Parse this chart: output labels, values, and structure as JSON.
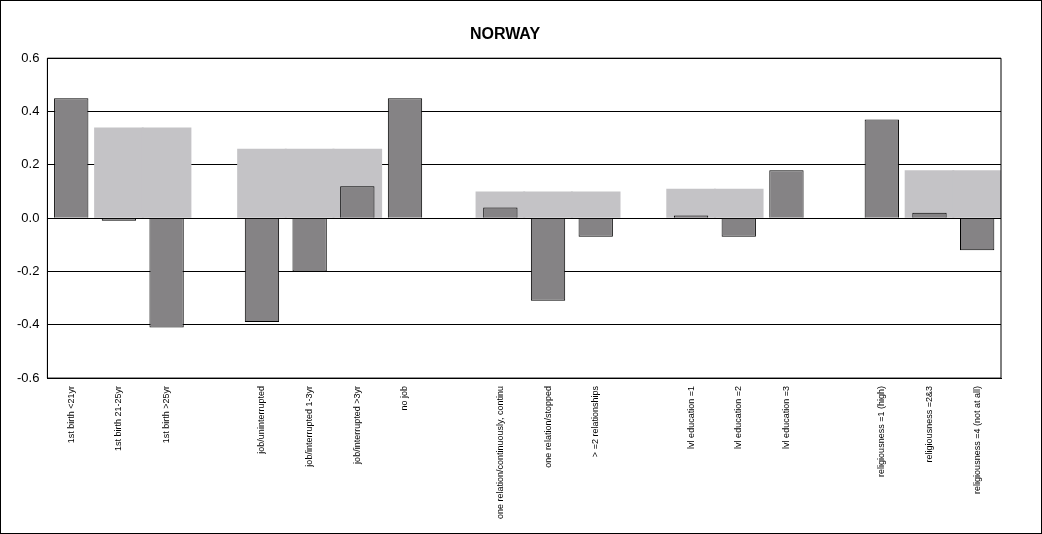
{
  "chart_data": {
    "type": "bar",
    "title": "NORWAY",
    "categories": [
      "1st birth <21yr",
      "1st birth 21-25yr",
      "1st birth >25yr",
      null,
      "job/uninterrupted",
      "job/interrupted 1-3yr",
      "job/interrupted >3yr",
      "no job",
      null,
      "one relation/continuously, continu",
      "one relation/stopped",
      "> =2 relationships",
      null,
      "lvl education =1",
      "lvl education =2",
      "lvl education =3",
      null,
      "religiousness =1 (high)",
      "religiousness =2&3",
      "religiousness =4 (not at all)"
    ],
    "series": [
      {
        "color": "#c4c3c6",
        "values": [
          null,
          0.34,
          0.34,
          null,
          0.26,
          0.26,
          0.26,
          null,
          null,
          0.1,
          0.1,
          0.1,
          null,
          0.11,
          0.11,
          null,
          null,
          null,
          0.18,
          0.18
        ]
      },
      {
        "color": "#858385",
        "values": [
          0.45,
          -0.01,
          -0.41,
          null,
          -0.39,
          -0.2,
          0.12,
          0.45,
          null,
          0.04,
          -0.31,
          -0.07,
          null,
          0.01,
          -0.07,
          0.18,
          null,
          0.37,
          0.02,
          -0.12
        ]
      }
    ],
    "ylim": [
      -0.6,
      0.6
    ],
    "yticks": [
      {
        "value": -0.6,
        "label": "-0.6"
      },
      {
        "value": -0.4,
        "label": "-0.4"
      },
      {
        "value": -0.2,
        "label": "-0.2"
      },
      {
        "value": 0,
        "label": "0.0"
      },
      {
        "value": 0.2,
        "label": "0.2"
      },
      {
        "value": 0.4,
        "label": "0.4"
      },
      {
        "value": 0.6,
        "label": "0.6"
      }
    ],
    "grid": "y",
    "legend": false
  }
}
